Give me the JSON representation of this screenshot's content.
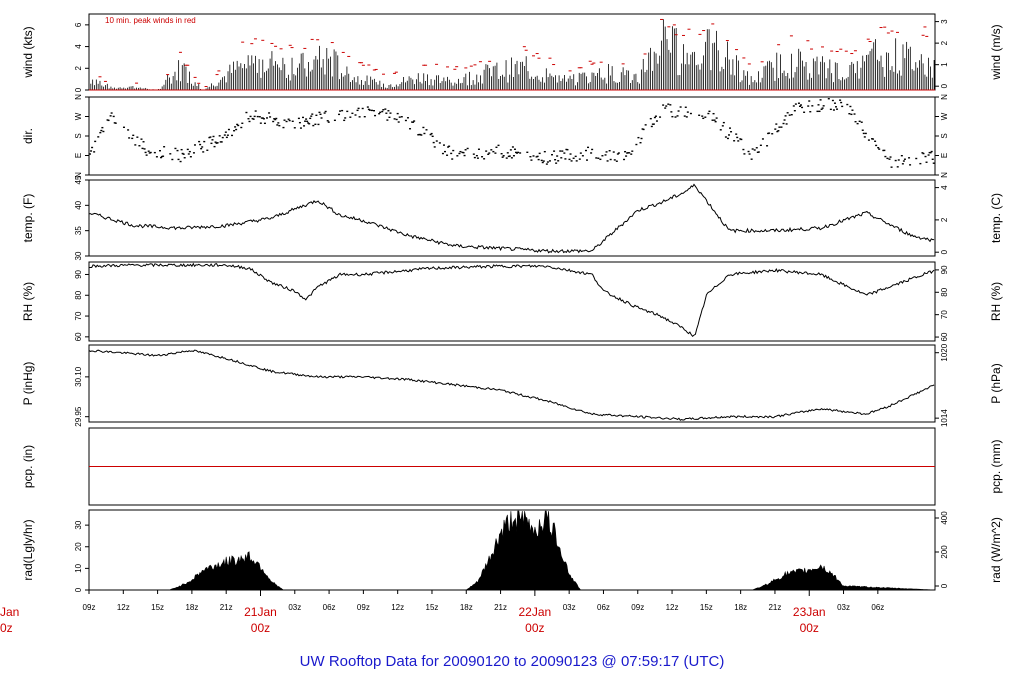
{
  "title": "UW Rooftop Data for 20090120  to  20090123 @ 07:59:17  (UTC)",
  "chart_data": [
    {
      "type": "line",
      "name": "wind",
      "ylabel": "wind (kts)",
      "ylabel_right": "wind (m/s)",
      "annotation": "10 min. peak winds in red",
      "ylim": [
        0,
        7
      ],
      "yticks": [
        "0",
        "2",
        "4",
        "6"
      ],
      "yticks_right": [
        "0",
        "1",
        "2",
        "3"
      ],
      "x": [
        0,
        2,
        3.5,
        6,
        8,
        10,
        13,
        15,
        18,
        21,
        23,
        26,
        29,
        32,
        35,
        38,
        42,
        45,
        48,
        50,
        52,
        55,
        58,
        61,
        64,
        67,
        69,
        72,
        74
      ],
      "values": [
        1.5,
        0.2,
        0.4,
        0,
        2.5,
        0,
        2.5,
        3.5,
        2.5,
        3.5,
        1.5,
        0.5,
        1.5,
        1,
        2,
        2.5,
        1,
        2,
        1.5,
        5.5,
        4,
        4.5,
        1,
        3.5,
        2.5,
        2,
        4,
        3.5,
        2.5
      ],
      "peak_values": [
        2,
        0.5,
        1,
        0,
        3.5,
        0,
        4,
        5,
        4,
        5,
        3,
        1.5,
        2.5,
        2,
        3,
        4,
        2,
        3,
        2.5,
        6.5,
        5.5,
        6,
        2,
        5,
        4,
        3.5,
        5.5,
        6.5,
        5
      ],
      "series_colors": {
        "mean": "#000000",
        "peak": "#cc0000"
      }
    },
    {
      "type": "scatter",
      "name": "dir",
      "ylabel": "dir.",
      "ylim": [
        0,
        360
      ],
      "yticks": [
        "N",
        "E",
        "S",
        "W",
        "N"
      ],
      "x": [
        0,
        2,
        5,
        8,
        12,
        14,
        18,
        22,
        25,
        28,
        32,
        36,
        40,
        44,
        47,
        50,
        54,
        58,
        62,
        66,
        70,
        73
      ],
      "values": [
        90,
        270,
        120,
        90,
        180,
        270,
        240,
        280,
        300,
        240,
        90,
        110,
        80,
        100,
        80,
        300,
        290,
        90,
        310,
        330,
        60,
        80
      ]
    },
    {
      "type": "line",
      "name": "temp",
      "ylabel": "temp. (F)",
      "ylabel_right": "temp. (C)",
      "ylim": [
        30,
        45
      ],
      "yticks": [
        "30",
        "35",
        "40",
        "45"
      ],
      "yticks_right": [
        "0",
        "2",
        "4"
      ],
      "x": [
        0,
        4,
        8,
        12,
        16,
        20,
        22,
        24,
        28,
        32,
        36,
        40,
        44,
        48,
        50,
        52,
        53,
        54,
        56,
        60,
        64,
        68,
        72,
        74
      ],
      "values": [
        38.5,
        36,
        35.5,
        36,
        37.5,
        41,
        38,
        37,
        34,
        32,
        31.5,
        31,
        31,
        39,
        40.5,
        42.5,
        44,
        41,
        35,
        35,
        35.5,
        38.5,
        34,
        33
      ]
    },
    {
      "type": "line",
      "name": "rh",
      "ylabel": "RH (%)",
      "ylabel_right": "RH (%)",
      "ylim": [
        58,
        96
      ],
      "yticks": [
        "60",
        "70",
        "80",
        "90"
      ],
      "yticks_right": [
        "60",
        "70",
        "80",
        "90"
      ],
      "x": [
        0,
        4,
        8,
        12,
        14,
        16,
        18,
        19,
        20,
        22,
        24,
        30,
        36,
        40,
        44,
        45,
        48,
        50,
        52,
        53,
        54,
        56,
        60,
        64,
        68,
        72,
        74
      ],
      "values": [
        94,
        94.5,
        94.5,
        94.5,
        93,
        86,
        82,
        78,
        84,
        90,
        90,
        93,
        94,
        94,
        90,
        82,
        74,
        70,
        64,
        60,
        80,
        90,
        92,
        90,
        80,
        88,
        92
      ]
    },
    {
      "type": "line",
      "name": "pressure",
      "ylabel": "P (inHg)",
      "ylabel_right": "P (hPa)",
      "ylim": [
        29.93,
        30.22
      ],
      "yticks": [
        "29.95",
        "30.10"
      ],
      "yticks_right": [
        "1014",
        "1020"
      ],
      "x": [
        0,
        3,
        6,
        9,
        12,
        16,
        20,
        24,
        28,
        32,
        36,
        40,
        44,
        48,
        52,
        56,
        60,
        64,
        68,
        70,
        72,
        74
      ],
      "values": [
        30.2,
        30.19,
        30.18,
        30.2,
        30.17,
        30.12,
        30.1,
        30.1,
        30.09,
        30.07,
        30.05,
        30.01,
        29.96,
        29.95,
        29.94,
        29.95,
        29.95,
        29.98,
        29.96,
        29.99,
        30.03,
        30.07
      ]
    },
    {
      "type": "line",
      "name": "precip",
      "ylabel": "pcp. (in)",
      "ylabel_right": "pcp. (mm)",
      "ylim": [
        0,
        1
      ],
      "x": [
        0,
        74
      ],
      "values": [
        0.5,
        0.5
      ]
    },
    {
      "type": "area",
      "name": "radiation",
      "ylabel": "rad(Lgly/hr)",
      "ylabel_right": "rad (W/m^2)",
      "ylim": [
        0,
        37
      ],
      "yticks": [
        "0",
        "10",
        "20",
        "30"
      ],
      "yticks_right": [
        "0",
        "200",
        "400"
      ],
      "x": [
        0,
        7,
        8,
        9,
        10,
        11,
        12,
        13,
        14,
        15,
        16,
        17,
        33,
        34,
        35,
        36,
        37,
        38,
        39,
        40,
        41,
        42,
        43,
        58,
        59,
        60,
        61,
        62,
        63,
        64,
        65,
        66,
        74
      ],
      "values": [
        0,
        0,
        2,
        5,
        10,
        12,
        14,
        15,
        17,
        12,
        4,
        0,
        0,
        4,
        15,
        28,
        36,
        35,
        30,
        36,
        25,
        8,
        0,
        0,
        2,
        5,
        8,
        9,
        10,
        12,
        8,
        2,
        0
      ]
    }
  ],
  "x_axis": {
    "ticks": [
      "09z",
      "12z",
      "15z",
      "18z",
      "21z",
      "03z",
      "06z",
      "09z",
      "12z",
      "15z",
      "18z",
      "21z",
      "03z",
      "06z",
      "09z",
      "12z",
      "15z",
      "18z",
      "21z",
      "03z",
      "06z"
    ],
    "tick_hours": [
      0,
      3,
      6,
      9,
      12,
      18,
      21,
      24,
      27,
      30,
      33,
      36,
      42,
      45,
      48,
      51,
      54,
      57,
      60,
      66,
      69
    ],
    "days": [
      {
        "day": "21Jan",
        "hour": "00z",
        "at": 15
      },
      {
        "day": "22Jan",
        "hour": "00z",
        "at": 39
      },
      {
        "day": "23Jan",
        "hour": "00z",
        "at": 63
      }
    ],
    "left_clipped": {
      "day": "Jan",
      "hour": "0z"
    }
  }
}
